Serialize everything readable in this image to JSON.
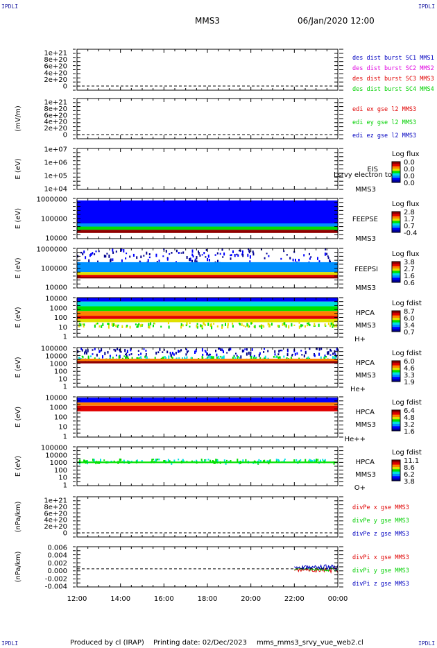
{
  "corners": {
    "top_left": "IPDLI",
    "top_right": "IPDLI",
    "bottom_left": "IPDLI",
    "bottom_right": "IPDLI"
  },
  "header": {
    "spacecraft": "MMS3",
    "datetime": "06/Jan/2020 12:00"
  },
  "footer": {
    "produced_by": "Produced by cl (IRAP)",
    "printing_date": "Printing date: 02/Dec/2023",
    "filename": "mms_mms3_srvy_vue_web2.cl"
  },
  "colors": {
    "red": "#e00000",
    "green": "#00d000",
    "blue": "#0000c0",
    "magenta": "#e000e0",
    "frame": "#000000"
  },
  "colorbar_scale": [
    "#000090",
    "#0000ff",
    "#0090ff",
    "#00e0e0",
    "#00e000",
    "#e0e000",
    "#ff8000",
    "#e00000",
    "#900000"
  ],
  "chart_data": {
    "type": "heatmap",
    "x_ticks": [
      "12:00",
      "14:00",
      "16:00",
      "18:00",
      "20:00",
      "22:00",
      "00:00"
    ],
    "x_range_hours": [
      12,
      24
    ],
    "panels": [
      {
        "id": "p1",
        "kind": "lines",
        "ylabel": "",
        "yticks": [
          "1e+21",
          "8e+20",
          "6e+20",
          "4e+20",
          "2e+20",
          "0"
        ],
        "dashed_zero": true,
        "legend": [
          {
            "text": "des dist burst SC1 MMS1",
            "color": "blue"
          },
          {
            "text": "des dist burst SC2 MMS2",
            "color": "magenta"
          },
          {
            "text": "des dist burst SC3 MMS3",
            "color": "red"
          },
          {
            "text": "des dist burst SC4 MMS4",
            "color": "green"
          }
        ]
      },
      {
        "id": "p2",
        "kind": "lines",
        "ylabel": "(mV/m)",
        "yticks": [
          "1e+21",
          "8e+20",
          "6e+20",
          "4e+20",
          "2e+20",
          "0"
        ],
        "dashed_zero": true,
        "legend": [
          {
            "text": "edi ex gse l2 MMS3",
            "color": "red"
          },
          {
            "text": "edi ey gse l2 MMS3",
            "color": "green"
          },
          {
            "text": "edi ez gse l2 MMS3",
            "color": "blue"
          }
        ]
      },
      {
        "id": "p3",
        "kind": "spectrogram",
        "ylabel": "E (eV)",
        "yticks": [
          "1e+07",
          "1e+06",
          "1e+05",
          "1e+04"
        ],
        "labels": [
          "EIS",
          "MMS3"
        ],
        "overlay": "Lsrvy electron to",
        "cb_title": "Log flux",
        "cb_ticks": [
          "0.0",
          "0.0",
          "0.0",
          "0.0"
        ],
        "bands": []
      },
      {
        "id": "p4",
        "kind": "spectrogram",
        "ylabel": "E (eV)",
        "yticks": [
          "1000000",
          "100000",
          "10000"
        ],
        "labels": [
          "FEEPSE",
          "MMS3"
        ],
        "cb_title": "Log flux",
        "cb_ticks": [
          "2.8",
          "1.7",
          "0.7",
          "-0.4"
        ],
        "bands": [
          {
            "y0": 0.05,
            "y1": 0.7,
            "level": 1
          },
          {
            "y0": 0.62,
            "y1": 0.72,
            "level": 2
          },
          {
            "y0": 0.7,
            "y1": 0.78,
            "level": 4
          },
          {
            "y0": 0.78,
            "y1": 0.86,
            "level": 8
          }
        ]
      },
      {
        "id": "p5",
        "kind": "spectrogram",
        "ylabel": "E (eV)",
        "yticks": [
          "1000000",
          "100000",
          "10000"
        ],
        "labels": [
          "FEEPSI",
          "MMS3"
        ],
        "cb_title": "Log flux",
        "cb_ticks": [
          "3.8",
          "2.7",
          "1.6",
          "0.6"
        ],
        "bands": [
          {
            "y0": 0.0,
            "y1": 0.35,
            "level": 1,
            "sparse": true
          },
          {
            "y0": 0.35,
            "y1": 0.6,
            "level": 2
          },
          {
            "y0": 0.6,
            "y1": 0.67,
            "level": 5
          },
          {
            "y0": 0.67,
            "y1": 0.72,
            "level": 7
          },
          {
            "y0": 0.72,
            "y1": 0.76,
            "level": 8
          }
        ]
      },
      {
        "id": "p6",
        "kind": "spectrogram",
        "ylabel": "E (eV)",
        "yticks": [
          "10000",
          "1000",
          "100",
          "10",
          "1"
        ],
        "labels": [
          "HPCA",
          "MMS3",
          "H+"
        ],
        "cb_title": "Log fdist",
        "cb_ticks": [
          "8.7",
          "6.0",
          "3.4",
          "0.7"
        ],
        "bands": [
          {
            "y0": 0.0,
            "y1": 0.1,
            "level": 1
          },
          {
            "y0": 0.1,
            "y1": 0.22,
            "level": 3
          },
          {
            "y0": 0.22,
            "y1": 0.34,
            "level": 4
          },
          {
            "y0": 0.34,
            "y1": 0.46,
            "level": 6
          },
          {
            "y0": 0.46,
            "y1": 0.54,
            "level": 7
          },
          {
            "y0": 0.54,
            "y1": 0.62,
            "level": 5
          },
          {
            "y0": 0.62,
            "y1": 0.72,
            "level": 5,
            "sparse": true
          }
        ]
      },
      {
        "id": "p7",
        "kind": "spectrogram",
        "ylabel": "E (eV)",
        "yticks": [
          "100000",
          "10000",
          "1000",
          "100",
          "10",
          "1"
        ],
        "labels": [
          "HPCA",
          "MMS3",
          "He+"
        ],
        "cb_title": "Log fdist",
        "cb_ticks": [
          "6.0",
          "4.6",
          "3.3",
          "1.9"
        ],
        "bands": [
          {
            "y0": 0.0,
            "y1": 0.2,
            "level": 1,
            "sparse": true
          },
          {
            "y0": 0.2,
            "y1": 0.28,
            "level": 4,
            "sparse": true
          },
          {
            "y0": 0.28,
            "y1": 0.34,
            "level": 6
          },
          {
            "y0": 0.34,
            "y1": 0.4,
            "level": 8
          }
        ]
      },
      {
        "id": "p8",
        "kind": "spectrogram",
        "ylabel": "E (eV)",
        "yticks": [
          "10000",
          "1000",
          "100",
          "10",
          "1"
        ],
        "labels": [
          "HPCA",
          "MMS3",
          "He++"
        ],
        "cb_title": "Log fdist",
        "cb_ticks": [
          "6.4",
          "4.8",
          "3.2",
          "1.6"
        ],
        "bands": [
          {
            "y0": 0.02,
            "y1": 0.14,
            "level": 1
          },
          {
            "y0": 0.14,
            "y1": 0.22,
            "level": 6
          },
          {
            "y0": 0.22,
            "y1": 0.36,
            "level": 7
          }
        ]
      },
      {
        "id": "p9",
        "kind": "spectrogram",
        "ylabel": "E (eV)",
        "yticks": [
          "100000",
          "10000",
          "1000",
          "100",
          "10",
          "1"
        ],
        "labels": [
          "HPCA",
          "MMS3",
          "O+"
        ],
        "cb_title": "Log fdist",
        "cb_ticks": [
          "11.1",
          "8.6",
          "6.2",
          "3.8"
        ],
        "bands": [
          {
            "y0": 0.3,
            "y1": 0.38,
            "level": 4,
            "sparse": true
          },
          {
            "y0": 0.38,
            "y1": 0.42,
            "level": 4
          }
        ]
      },
      {
        "id": "p10",
        "kind": "lines",
        "ylabel": "(nPa/km)",
        "yticks": [
          "1e+21",
          "8e+20",
          "6e+20",
          "4e+20",
          "2e+20",
          "0"
        ],
        "dashed_zero": true,
        "legend": [
          {
            "text": "divPe x gse MMS3",
            "color": "red"
          },
          {
            "text": "divPe y gse MMS3",
            "color": "green"
          },
          {
            "text": "divPe z gse MMS3",
            "color": "blue"
          }
        ]
      },
      {
        "id": "p11",
        "kind": "lines",
        "ylabel": "(nPa/km)",
        "yticks": [
          "0.006",
          "0.004",
          "0.002",
          "0.000",
          "-0.002",
          "-0.004"
        ],
        "dashed_zero": true,
        "legend": [
          {
            "text": "divPi x gse MMS3",
            "color": "red"
          },
          {
            "text": "divPi y gse MMS3",
            "color": "green"
          },
          {
            "text": "divPi z gse MMS3",
            "color": "blue"
          }
        ],
        "series_start_hour": 22.0
      }
    ]
  }
}
